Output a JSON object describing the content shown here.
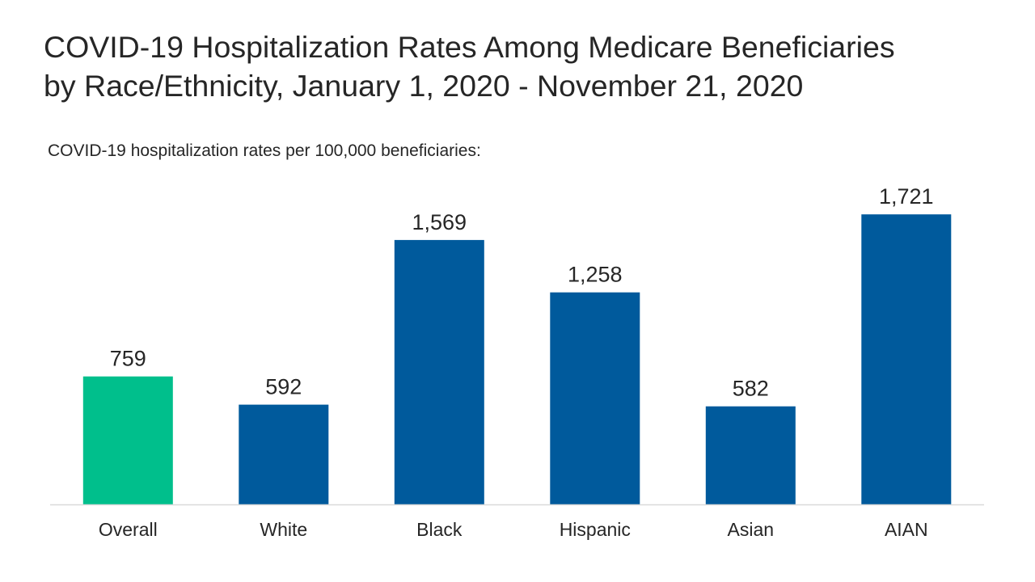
{
  "title_line1": "COVID-19 Hospitalization Rates Among Medicare Beneficiaries",
  "title_line2": "by Race/Ethnicity, January 1, 2020 - November 21, 2020",
  "subtitle": "COVID-19 hospitalization rates per 100,000 beneficiaries:",
  "colors": {
    "overall": "#00bf8c",
    "group": "#005a9c",
    "axis": "#d9d9d9",
    "text": "#262626"
  },
  "chart_data": {
    "type": "bar",
    "title": "COVID-19 Hospitalization Rates Among Medicare Beneficiaries by Race/Ethnicity, January 1, 2020 - November 21, 2020",
    "subtitle": "COVID-19 hospitalization rates per 100,000 beneficiaries:",
    "categories": [
      "Overall",
      "White",
      "Black",
      "Hispanic",
      "Asian",
      "AIAN"
    ],
    "values": [
      759,
      592,
      1569,
      1258,
      582,
      1721
    ],
    "value_labels": [
      "759",
      "592",
      "1,569",
      "1,258",
      "582",
      "1,721"
    ],
    "bar_colors": [
      "#00bf8c",
      "#005a9c",
      "#005a9c",
      "#005a9c",
      "#005a9c",
      "#005a9c"
    ],
    "xlabel": "",
    "ylabel": "",
    "ylim": [
      0,
      1800
    ],
    "grid": false,
    "legend": "none"
  }
}
